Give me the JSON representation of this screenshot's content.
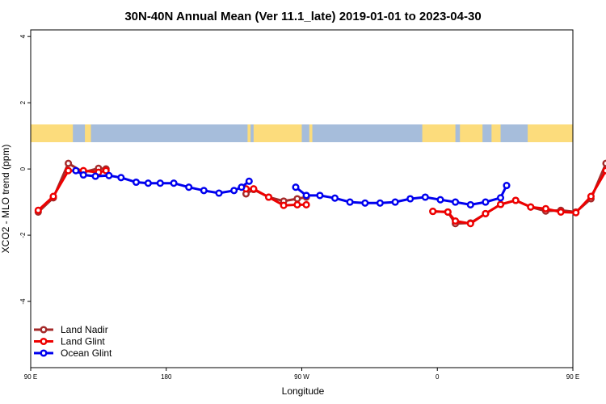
{
  "chart_data": {
    "type": "line",
    "title": "30N-40N Annual Mean (Ver 11.1_late)   2019-01-01 to 2023-04-30",
    "xlabel": "Longitude",
    "ylabel": "XCO2 - MLO trend (ppm)",
    "xlim": [
      90,
      450
    ],
    "ylim": [
      -6,
      4.2
    ],
    "x_ticks": [
      {
        "value": 90,
        "label": "90 E"
      },
      {
        "value": 180,
        "label": "180"
      },
      {
        "value": 270,
        "label": "90 W"
      },
      {
        "value": 360,
        "label": "0"
      },
      {
        "value": 450,
        "label": "90 E"
      },
      {
        "value": 540,
        "label": "180"
      }
    ],
    "y_ticks": [
      {
        "value": 4,
        "label": "4"
      },
      {
        "value": 2,
        "label": "2"
      },
      {
        "value": 0,
        "label": "0"
      },
      {
        "value": -2,
        "label": "-2"
      },
      {
        "value": -4,
        "label": "-4"
      }
    ],
    "legend_position": "bottom-left",
    "series": [
      {
        "name": "Land Nadir",
        "color": "#a52a2a",
        "segments": [
          [
            [
              95,
              -1.3
            ],
            [
              105,
              -0.87
            ],
            [
              115,
              0.17
            ],
            [
              125,
              -0.1
            ],
            [
              135,
              0.02
            ],
            [
              140,
              0.0
            ]
          ],
          [
            [
              233,
              -0.75
            ],
            [
              238,
              -0.62
            ],
            [
              248,
              -0.85
            ],
            [
              258,
              -0.97
            ],
            [
              267,
              -0.9
            ],
            [
              273,
              -0.85
            ]
          ],
          [
            [
              357,
              -1.28
            ],
            [
              367,
              -1.3
            ],
            [
              372,
              -1.65
            ],
            [
              382,
              -1.63
            ],
            [
              392,
              -1.35
            ],
            [
              402,
              -1.07
            ],
            [
              412,
              -0.95
            ],
            [
              422,
              -1.15
            ],
            [
              432,
              -1.27
            ],
            [
              442,
              -1.25
            ],
            [
              452,
              -1.3
            ],
            [
              462,
              -0.9
            ],
            [
              472,
              0.17
            ],
            [
              482,
              -0.1
            ],
            [
              492,
              0.02
            ],
            [
              497,
              0.0
            ]
          ]
        ]
      },
      {
        "name": "Land Glint",
        "color": "#ee0000",
        "segments": [
          [
            [
              95,
              -1.25
            ],
            [
              105,
              -0.83
            ],
            [
              115,
              -0.05
            ],
            [
              125,
              -0.05
            ],
            [
              135,
              -0.1
            ],
            [
              140,
              -0.05
            ]
          ],
          [
            [
              233,
              -0.6
            ],
            [
              238,
              -0.6
            ],
            [
              248,
              -0.85
            ],
            [
              258,
              -1.1
            ],
            [
              267,
              -1.08
            ],
            [
              273,
              -1.08
            ]
          ],
          [
            [
              357,
              -1.28
            ],
            [
              367,
              -1.3
            ],
            [
              372,
              -1.57
            ],
            [
              382,
              -1.65
            ],
            [
              392,
              -1.35
            ],
            [
              402,
              -1.07
            ],
            [
              412,
              -0.95
            ],
            [
              422,
              -1.15
            ],
            [
              432,
              -1.2
            ],
            [
              442,
              -1.3
            ],
            [
              452,
              -1.32
            ],
            [
              462,
              -0.83
            ],
            [
              472,
              -0.05
            ],
            [
              482,
              -0.05
            ],
            [
              492,
              -0.1
            ],
            [
              497,
              -0.05
            ]
          ]
        ]
      },
      {
        "name": "Ocean Glint",
        "color": "#0000ee",
        "segments": [
          [
            [
              120,
              -0.05
            ],
            [
              125,
              -0.18
            ],
            [
              133,
              -0.22
            ],
            [
              142,
              -0.2
            ],
            [
              150,
              -0.26
            ],
            [
              160,
              -0.4
            ],
            [
              168,
              -0.43
            ],
            [
              176,
              -0.43
            ],
            [
              185,
              -0.43
            ],
            [
              195,
              -0.55
            ],
            [
              205,
              -0.65
            ],
            [
              215,
              -0.73
            ],
            [
              225,
              -0.65
            ],
            [
              230,
              -0.55
            ],
            [
              235,
              -0.37
            ]
          ],
          [
            [
              266,
              -0.55
            ],
            [
              273,
              -0.8
            ],
            [
              282,
              -0.8
            ],
            [
              292,
              -0.88
            ],
            [
              302,
              -1.0
            ],
            [
              312,
              -1.03
            ],
            [
              322,
              -1.03
            ],
            [
              332,
              -1.0
            ],
            [
              342,
              -0.9
            ],
            [
              352,
              -0.85
            ],
            [
              362,
              -0.93
            ],
            [
              372,
              -1.0
            ],
            [
              382,
              -1.08
            ],
            [
              392,
              -1.0
            ],
            [
              402,
              -0.87
            ],
            [
              406,
              -0.5
            ]
          ]
        ]
      }
    ]
  },
  "map_band": {
    "lat_range": "30N-40N",
    "ocean_color": "#a6bddb",
    "land_color": "#fcdc7c"
  }
}
